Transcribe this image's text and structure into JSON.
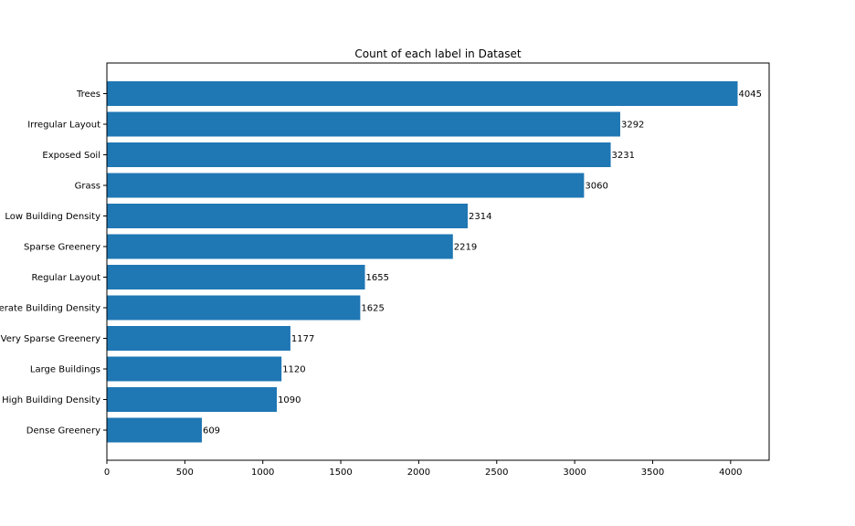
{
  "chart_data": {
    "type": "bar",
    "orientation": "horizontal",
    "title": "Count of each label in Dataset",
    "xlabel": "",
    "ylabel": "",
    "categories": [
      "Trees",
      "Irregular Layout",
      "Exposed Soil",
      "Grass",
      "Low Building Density",
      "Sparse Greenery",
      "Regular Layout",
      "Moderate Building Density",
      "Very Sparse Greenery",
      "Large Buildings",
      "High Building Density",
      "Dense Greenery"
    ],
    "values": [
      4045,
      3292,
      3231,
      3060,
      2314,
      2219,
      1655,
      1625,
      1177,
      1120,
      1090,
      609
    ],
    "xlim": [
      0,
      4247
    ],
    "xticks": [
      0,
      500,
      1000,
      1500,
      2000,
      2500,
      3000,
      3500,
      4000
    ],
    "grid": false,
    "bar_color": "#1f77b4"
  }
}
